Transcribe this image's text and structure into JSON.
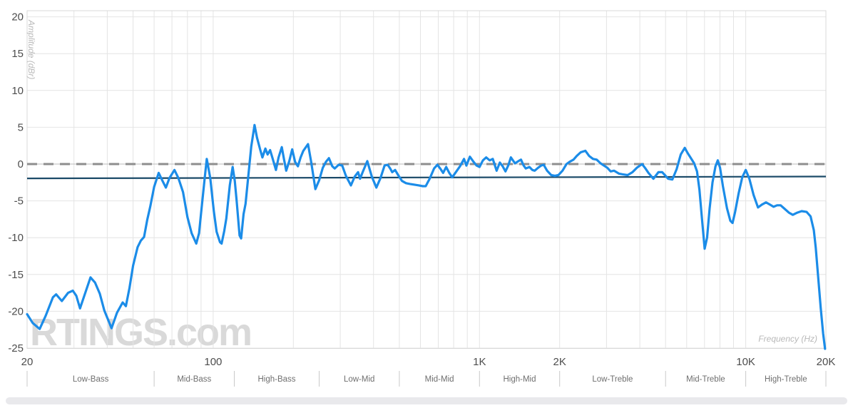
{
  "watermark": "RTINGS.com",
  "colors": {
    "background": "#ffffff",
    "grid": "#e4e4e4",
    "border": "#d9d9d9",
    "tick_label": "#4d4d4d",
    "band_label": "#6f6f6f",
    "band_tick": "#c9c9c9",
    "axis_title": "#b9b9b9",
    "watermark": "#d9d9d9",
    "response": "#1b8ce8",
    "target": "#1b4a68",
    "zero_dash": "#8e8e8e",
    "zero_thin": "#bbbbbb",
    "bottom_bar": "#e9e9ec"
  },
  "chart_data": {
    "type": "line",
    "title": "",
    "xlabel": "Frequency (Hz)",
    "ylabel": "Amplitude (dBr)",
    "x_scale": "log",
    "xlim": [
      20,
      20000
    ],
    "ylim": [
      -25,
      20.8
    ],
    "grid": true,
    "legend_position": "none",
    "x_ticks": [
      {
        "v": 20,
        "label": "20"
      },
      {
        "v": 100,
        "label": "100"
      },
      {
        "v": 1000,
        "label": "1K"
      },
      {
        "v": 2000,
        "label": "2K"
      },
      {
        "v": 10000,
        "label": "10K"
      },
      {
        "v": 20000,
        "label": "20K"
      }
    ],
    "y_ticks": [
      {
        "v": 20,
        "label": "20"
      },
      {
        "v": 15,
        "label": "15"
      },
      {
        "v": 10,
        "label": "10"
      },
      {
        "v": 5,
        "label": "5"
      },
      {
        "v": 0,
        "label": "0"
      },
      {
        "v": -5,
        "label": "-5"
      },
      {
        "v": -10,
        "label": "-10"
      },
      {
        "v": -15,
        "label": "-15"
      },
      {
        "v": -20,
        "label": "-20"
      },
      {
        "v": -25,
        "label": "-25"
      }
    ],
    "x_gridlines": [
      20,
      30,
      40,
      50,
      60,
      70,
      80,
      90,
      100,
      200,
      300,
      400,
      500,
      600,
      700,
      800,
      900,
      1000,
      2000,
      3000,
      4000,
      5000,
      6000,
      7000,
      8000,
      9000,
      10000,
      20000
    ],
    "y_gridlines": [
      20,
      15,
      10,
      5,
      0,
      -5,
      -10,
      -15,
      -20,
      -25
    ],
    "bands": {
      "boundaries": [
        20,
        60,
        120,
        250,
        500,
        1000,
        2000,
        5000,
        10000,
        20000
      ],
      "labels": [
        "Low-Bass",
        "Mid-Bass",
        "High-Bass",
        "Low-Mid",
        "Mid-Mid",
        "High-Mid",
        "Low-Treble",
        "Mid-Treble",
        "High-Treble"
      ]
    },
    "series": [
      {
        "name": "zero-reference",
        "style": "dashed",
        "points": [
          [
            20,
            0
          ],
          [
            20000,
            0
          ]
        ]
      },
      {
        "name": "target-response",
        "style": "solid-thin",
        "points": [
          [
            20,
            -1.95
          ],
          [
            20000,
            -1.7
          ]
        ]
      },
      {
        "name": "frequency-response",
        "style": "solid",
        "points": [
          [
            20,
            -20.4
          ],
          [
            21,
            -21.6
          ],
          [
            22.3,
            -22.4
          ],
          [
            23.5,
            -20.6
          ],
          [
            25,
            -18.1
          ],
          [
            25.7,
            -17.7
          ],
          [
            27,
            -18.6
          ],
          [
            28.5,
            -17.5
          ],
          [
            29.7,
            -17.2
          ],
          [
            30.6,
            -17.9
          ],
          [
            31.6,
            -19.6
          ],
          [
            33,
            -17.6
          ],
          [
            34.6,
            -15.4
          ],
          [
            36,
            -16.1
          ],
          [
            37.5,
            -17.6
          ],
          [
            39,
            -19.9
          ],
          [
            41.5,
            -22.3
          ],
          [
            43.5,
            -20.2
          ],
          [
            45.7,
            -18.8
          ],
          [
            47,
            -19.3
          ],
          [
            48.5,
            -16.8
          ],
          [
            50,
            -13.8
          ],
          [
            52,
            -11.3
          ],
          [
            53.5,
            -10.4
          ],
          [
            55,
            -9.9
          ],
          [
            56.5,
            -7.6
          ],
          [
            58,
            -5.8
          ],
          [
            60,
            -3.1
          ],
          [
            62.4,
            -1.2
          ],
          [
            64.5,
            -2.3
          ],
          [
            66.4,
            -3.2
          ],
          [
            68.5,
            -1.9
          ],
          [
            71.5,
            -0.8
          ],
          [
            74,
            -1.9
          ],
          [
            77,
            -3.8
          ],
          [
            80,
            -7.2
          ],
          [
            83,
            -9.4
          ],
          [
            86.4,
            -10.8
          ],
          [
            88.5,
            -9.4
          ],
          [
            90,
            -6.7
          ],
          [
            92.7,
            -2.2
          ],
          [
            94.6,
            0.7
          ],
          [
            97.5,
            -1.9
          ],
          [
            100.5,
            -6.4
          ],
          [
            103,
            -9.2
          ],
          [
            106,
            -10.6
          ],
          [
            107.5,
            -10.8
          ],
          [
            110,
            -9.1
          ],
          [
            112,
            -7.4
          ],
          [
            115.4,
            -2.9
          ],
          [
            118.3,
            -0.4
          ],
          [
            120.5,
            -2.3
          ],
          [
            122.5,
            -5.1
          ],
          [
            125.6,
            -9.7
          ],
          [
            127.3,
            -10.1
          ],
          [
            130,
            -6.8
          ],
          [
            132.3,
            -5.4
          ],
          [
            136,
            -1.0
          ],
          [
            139,
            2.4
          ],
          [
            143,
            5.3
          ],
          [
            146,
            3.6
          ],
          [
            150,
            2.0
          ],
          [
            153,
            0.9
          ],
          [
            157,
            2.1
          ],
          [
            160,
            1.3
          ],
          [
            163.5,
            1.9
          ],
          [
            167,
            0.8
          ],
          [
            172,
            -0.8
          ],
          [
            176,
            0.9
          ],
          [
            181,
            2.3
          ],
          [
            184.5,
            0.6
          ],
          [
            188,
            -0.9
          ],
          [
            193,
            0.4
          ],
          [
            198,
            2.0
          ],
          [
            203,
            0.3
          ],
          [
            208,
            -0.3
          ],
          [
            213,
            0.9
          ],
          [
            218,
            1.8
          ],
          [
            227,
            2.7
          ],
          [
            233,
            0.4
          ],
          [
            242,
            -3.4
          ],
          [
            250,
            -2.2
          ],
          [
            258,
            -0.5
          ],
          [
            265,
            0.3
          ],
          [
            272,
            0.8
          ],
          [
            280,
            -0.3
          ],
          [
            286,
            -0.6
          ],
          [
            296,
            -0.1
          ],
          [
            305,
            -0.2
          ],
          [
            315,
            -1.6
          ],
          [
            329,
            -2.9
          ],
          [
            340,
            -1.7
          ],
          [
            350,
            -1.1
          ],
          [
            356,
            -2.0
          ],
          [
            365,
            -1.0
          ],
          [
            379,
            0.4
          ],
          [
            394,
            -1.7
          ],
          [
            410,
            -3.2
          ],
          [
            425,
            -1.9
          ],
          [
            440,
            -0.2
          ],
          [
            452,
            -0.1
          ],
          [
            462,
            -0.6
          ],
          [
            470,
            -1.1
          ],
          [
            482,
            -0.8
          ],
          [
            495,
            -1.5
          ],
          [
            512,
            -2.3
          ],
          [
            530,
            -2.6
          ],
          [
            548,
            -2.7
          ],
          [
            570,
            -2.8
          ],
          [
            592,
            -2.9
          ],
          [
            612,
            -3.0
          ],
          [
            628,
            -3.0
          ],
          [
            650,
            -2.0
          ],
          [
            675,
            -0.6
          ],
          [
            695,
            -0.1
          ],
          [
            715,
            -0.7
          ],
          [
            730,
            -1.2
          ],
          [
            750,
            -0.4
          ],
          [
            770,
            -1.2
          ],
          [
            790,
            -1.8
          ],
          [
            815,
            -1.1
          ],
          [
            845,
            -0.3
          ],
          [
            875,
            0.7
          ],
          [
            893,
            -0.2
          ],
          [
            920,
            1.0
          ],
          [
            950,
            0.3
          ],
          [
            975,
            -0.2
          ],
          [
            1000,
            -0.4
          ],
          [
            1030,
            0.5
          ],
          [
            1060,
            0.9
          ],
          [
            1092,
            0.5
          ],
          [
            1122,
            0.7
          ],
          [
            1160,
            -0.9
          ],
          [
            1192,
            0.2
          ],
          [
            1222,
            -0.3
          ],
          [
            1252,
            -1.0
          ],
          [
            1282,
            -0.2
          ],
          [
            1312,
            0.9
          ],
          [
            1360,
            0.1
          ],
          [
            1400,
            0.4
          ],
          [
            1432,
            0.6
          ],
          [
            1465,
            -0.2
          ],
          [
            1492,
            -0.6
          ],
          [
            1540,
            -0.4
          ],
          [
            1580,
            -0.8
          ],
          [
            1612,
            -0.9
          ],
          [
            1660,
            -0.5
          ],
          [
            1705,
            -0.2
          ],
          [
            1742,
            -0.1
          ],
          [
            1795,
            -0.9
          ],
          [
            1860,
            -1.5
          ],
          [
            1920,
            -1.6
          ],
          [
            1978,
            -1.5
          ],
          [
            2050,
            -0.9
          ],
          [
            2122,
            0.0
          ],
          [
            2180,
            0.3
          ],
          [
            2255,
            0.6
          ],
          [
            2320,
            1.1
          ],
          [
            2400,
            1.6
          ],
          [
            2500,
            1.8
          ],
          [
            2580,
            1.1
          ],
          [
            2670,
            0.7
          ],
          [
            2755,
            0.6
          ],
          [
            2850,
            0.1
          ],
          [
            2932,
            -0.2
          ],
          [
            3020,
            -0.5
          ],
          [
            3110,
            -1.0
          ],
          [
            3200,
            -0.9
          ],
          [
            3340,
            -1.3
          ],
          [
            3450,
            -1.4
          ],
          [
            3600,
            -1.5
          ],
          [
            3755,
            -1.1
          ],
          [
            3900,
            -0.5
          ],
          [
            4080,
            0.0
          ],
          [
            4200,
            -0.6
          ],
          [
            4310,
            -1.2
          ],
          [
            4500,
            -2.0
          ],
          [
            4700,
            -1.1
          ],
          [
            4855,
            -1.1
          ],
          [
            5000,
            -1.6
          ],
          [
            5110,
            -2.0
          ],
          [
            5300,
            -2.1
          ],
          [
            5500,
            -0.7
          ],
          [
            5700,
            1.3
          ],
          [
            5900,
            2.2
          ],
          [
            6050,
            1.5
          ],
          [
            6200,
            0.9
          ],
          [
            6400,
            0.1
          ],
          [
            6560,
            -1.0
          ],
          [
            6700,
            -3.5
          ],
          [
            6850,
            -7.5
          ],
          [
            7010,
            -11.5
          ],
          [
            7160,
            -10.0
          ],
          [
            7320,
            -6.0
          ],
          [
            7500,
            -2.5
          ],
          [
            7700,
            -0.3
          ],
          [
            7850,
            0.5
          ],
          [
            8010,
            -0.5
          ],
          [
            8210,
            -3.0
          ],
          [
            8500,
            -6.0
          ],
          [
            8750,
            -7.7
          ],
          [
            8920,
            -8.0
          ],
          [
            9120,
            -6.5
          ],
          [
            9400,
            -4.0
          ],
          [
            9700,
            -1.8
          ],
          [
            10000,
            -0.8
          ],
          [
            10320,
            -2.0
          ],
          [
            10700,
            -4.2
          ],
          [
            11120,
            -5.9
          ],
          [
            11500,
            -5.5
          ],
          [
            11920,
            -5.2
          ],
          [
            12320,
            -5.5
          ],
          [
            12720,
            -5.8
          ],
          [
            13120,
            -5.6
          ],
          [
            13520,
            -5.6
          ],
          [
            14020,
            -6.1
          ],
          [
            14520,
            -6.6
          ],
          [
            15020,
            -6.9
          ],
          [
            15620,
            -6.6
          ],
          [
            16220,
            -6.4
          ],
          [
            16920,
            -6.5
          ],
          [
            17520,
            -7.1
          ],
          [
            18020,
            -9.0
          ],
          [
            18320,
            -11.4
          ],
          [
            18720,
            -15.5
          ],
          [
            19120,
            -19.5
          ],
          [
            19520,
            -23.0
          ],
          [
            19850,
            -25.1
          ]
        ]
      }
    ]
  }
}
